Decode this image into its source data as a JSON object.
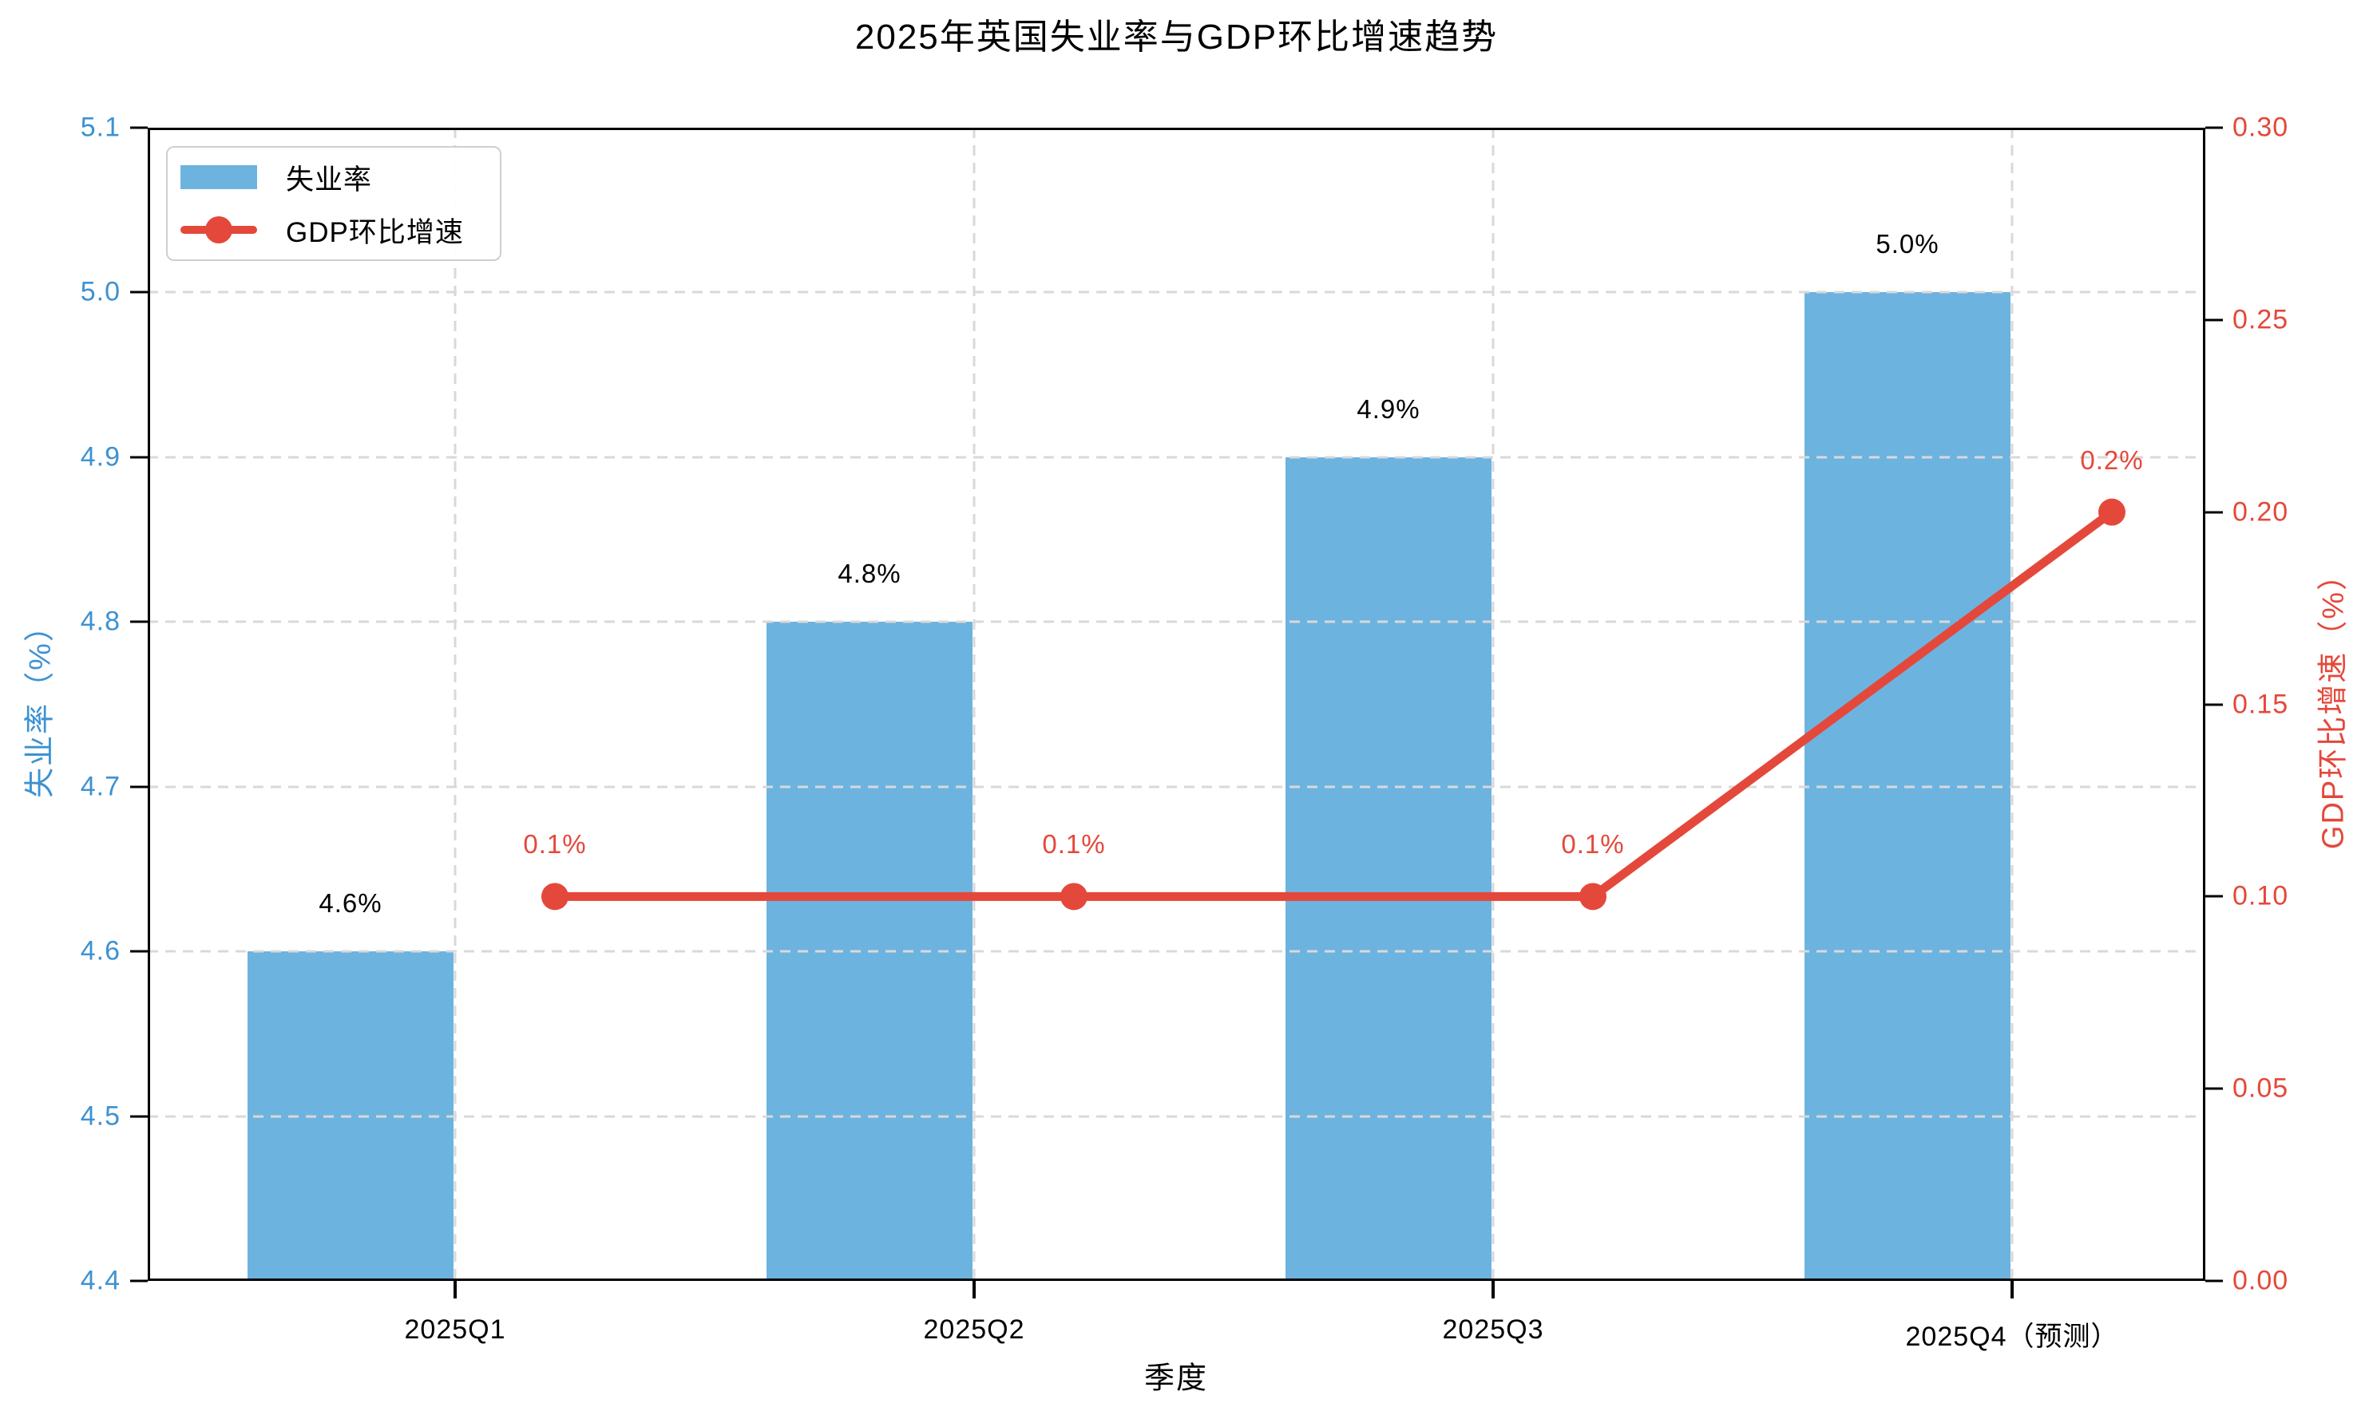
{
  "chart_data": {
    "type": "bar+line dual-axis combo",
    "title": "2025年英国失业率与GDP环比增速趋势",
    "xlabel": "季度",
    "categories": [
      "2025Q1",
      "2025Q2",
      "2025Q3",
      "2025Q4（预测）"
    ],
    "series": [
      {
        "name": "失业率",
        "type": "bar",
        "yaxis": "left",
        "values": [
          4.6,
          4.8,
          4.9,
          5.0
        ],
        "data_labels": [
          "4.6%",
          "4.8%",
          "4.9%",
          "5.0%"
        ],
        "color": "#6DB3E0",
        "label_color": "#000000"
      },
      {
        "name": "GDP环比增速",
        "type": "line",
        "yaxis": "right",
        "values": [
          0.1,
          0.1,
          0.1,
          0.2
        ],
        "data_labels": [
          "0.1%",
          "0.1%",
          "0.1%",
          "0.2%"
        ],
        "color": "#E4483B",
        "marker": "circle",
        "label_color": "#E4483B"
      }
    ],
    "axes": {
      "left": {
        "label": "失业率（%）",
        "min": 4.4,
        "max": 5.1,
        "tick_step": 0.1,
        "tick_labels": [
          "4.4",
          "4.5",
          "4.6",
          "4.7",
          "4.8",
          "4.9",
          "5.0",
          "5.1"
        ],
        "color": "#3D92D2"
      },
      "right": {
        "label": "GDP环比增速（%）",
        "min": 0.0,
        "max": 0.3,
        "tick_step": 0.05,
        "tick_labels": [
          "0.00",
          "0.05",
          "0.10",
          "0.15",
          "0.20",
          "0.25",
          "0.30"
        ],
        "color": "#E4483B"
      },
      "x": {
        "label": "季度",
        "color": "#000000"
      }
    },
    "grid": {
      "show": true,
      "style": "dashed",
      "color": "#D9D9D9"
    },
    "legend": {
      "position": "upper left",
      "entries": [
        "失业率",
        "GDP环比增速"
      ]
    }
  }
}
